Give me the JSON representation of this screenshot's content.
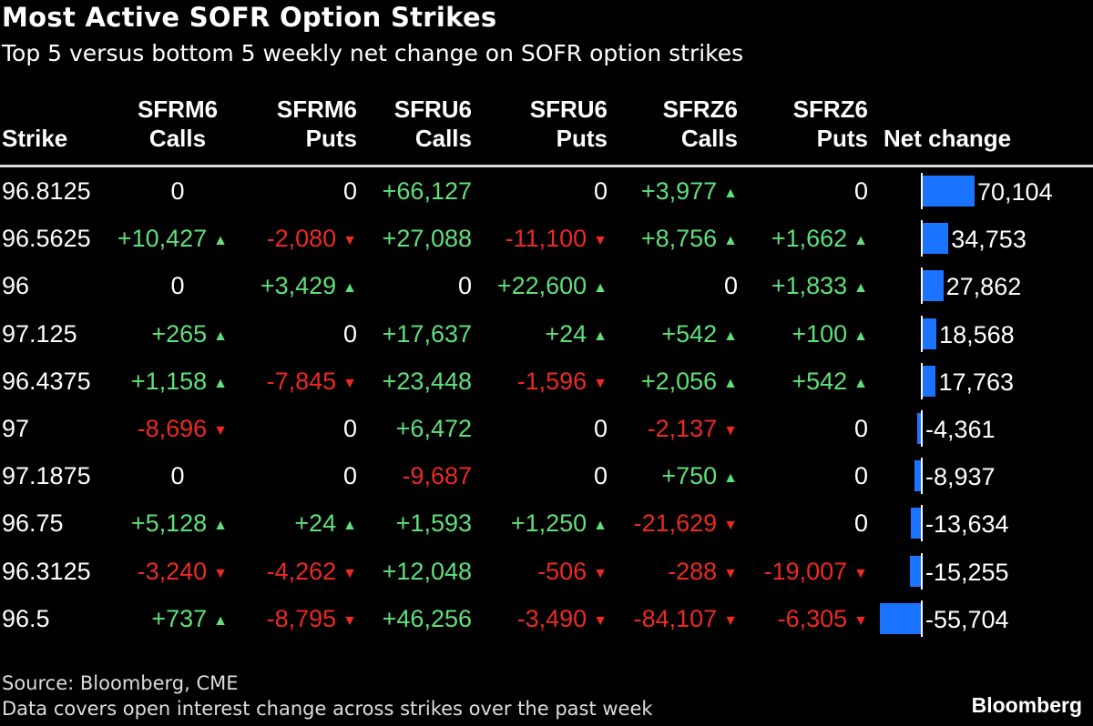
{
  "chart_data": {
    "type": "table",
    "title": "Most Active SOFR Option Strikes",
    "subtitle": "Top 5 versus bottom 5 weekly net change on SOFR option strikes",
    "columns": [
      {
        "line1": "",
        "line2": "Strike"
      },
      {
        "line1": "SFRM6",
        "line2": "Calls"
      },
      {
        "line1": "SFRM6",
        "line2": "Puts"
      },
      {
        "line1": "SFRU6",
        "line2": "Calls"
      },
      {
        "line1": "SFRU6",
        "line2": "Puts"
      },
      {
        "line1": "SFRZ6",
        "line2": "Calls"
      },
      {
        "line1": "SFRZ6",
        "line2": "Puts"
      },
      {
        "line1": "",
        "line2": "Net change"
      }
    ],
    "rows": [
      {
        "strike": "96.8125",
        "values": [
          "0",
          "0",
          "+66,127",
          "0",
          "+3,977",
          "0"
        ],
        "net": 70104,
        "net_label": "70,104"
      },
      {
        "strike": "96.5625",
        "values": [
          "+10,427",
          "-2,080",
          "+27,088",
          "-11,100",
          "+8,756",
          "+1,662"
        ],
        "net": 34753,
        "net_label": "34,753"
      },
      {
        "strike": "96",
        "values": [
          "0",
          "+3,429",
          "0",
          "+22,600",
          "0",
          "+1,833"
        ],
        "net": 27862,
        "net_label": "27,862"
      },
      {
        "strike": "97.125",
        "values": [
          "+265",
          "0",
          "+17,637",
          "+24",
          "+542",
          "+100"
        ],
        "net": 18568,
        "net_label": "18,568"
      },
      {
        "strike": "96.4375",
        "values": [
          "+1,158",
          "-7,845",
          "+23,448",
          "-1,596",
          "+2,056",
          "+542"
        ],
        "net": 17763,
        "net_label": "17,763"
      },
      {
        "strike": "97",
        "values": [
          "-8,696",
          "0",
          "+6,472",
          "0",
          "-2,137",
          "0"
        ],
        "net": -4361,
        "net_label": "-4,361"
      },
      {
        "strike": "97.1875",
        "values": [
          "0",
          "0",
          "-9,687",
          "0",
          "+750",
          "0"
        ],
        "net": -8937,
        "net_label": "-8,937"
      },
      {
        "strike": "96.75",
        "values": [
          "+5,128",
          "+24",
          "+1,593",
          "+1,250",
          "-21,629",
          "0"
        ],
        "net": -13634,
        "net_label": "-13,634"
      },
      {
        "strike": "96.3125",
        "values": [
          "-3,240",
          "-4,262",
          "+12,048",
          "-506",
          "-288",
          "-19,007"
        ],
        "net": -15255,
        "net_label": "-15,255"
      },
      {
        "strike": "96.5",
        "values": [
          "+737",
          "-8,795",
          "+46,256",
          "-3,490",
          "-84,107",
          "-6,305"
        ],
        "net": -55704,
        "net_label": "-55,704"
      }
    ],
    "arrow_columns": [
      true,
      true,
      false,
      true,
      true,
      true
    ],
    "colors": {
      "positive": "#5fe07a",
      "negative": "#ec2a22",
      "bar": "#1a74ff"
    }
  },
  "footer": {
    "source": "Source: Bloomberg, CME",
    "note": "Data covers open interest change across strikes over the past week",
    "logo": "Bloomberg"
  }
}
